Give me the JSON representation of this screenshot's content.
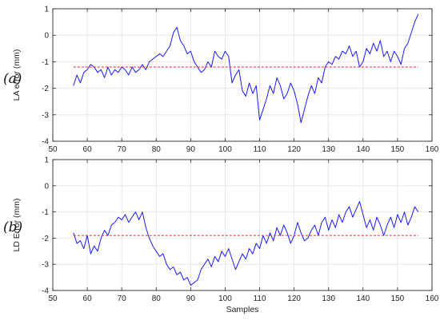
{
  "chart_data": [
    {
      "type": "line",
      "panel_label": "(a)",
      "title": "",
      "xlabel": "",
      "ylabel": "LA error (mm)",
      "xlim": [
        50,
        160
      ],
      "ylim": [
        -4,
        1
      ],
      "xticks": [
        50,
        60,
        70,
        80,
        90,
        100,
        110,
        120,
        130,
        140,
        150,
        160
      ],
      "yticks": [
        1,
        0,
        -1,
        -2,
        -3,
        -4
      ],
      "grid": true,
      "series": [
        {
          "color": "#1a1aff",
          "style": "solid",
          "x": [
            56,
            57,
            58,
            59,
            60,
            61,
            62,
            63,
            64,
            65,
            66,
            67,
            68,
            69,
            70,
            71,
            72,
            73,
            74,
            75,
            76,
            77,
            78,
            79,
            80,
            81,
            82,
            83,
            84,
            85,
            86,
            87,
            88,
            89,
            90,
            91,
            92,
            93,
            94,
            95,
            96,
            97,
            98,
            99,
            100,
            101,
            102,
            103,
            104,
            105,
            106,
            107,
            108,
            109,
            110,
            111,
            112,
            113,
            114,
            115,
            116,
            117,
            118,
            119,
            120,
            121,
            122,
            123,
            124,
            125,
            126,
            127,
            128,
            129,
            130,
            131,
            132,
            133,
            134,
            135,
            136,
            137,
            138,
            139,
            140,
            141,
            142,
            143,
            144,
            145,
            146,
            147,
            148,
            149,
            150,
            151,
            152,
            153,
            154,
            155,
            156
          ],
          "y": [
            -1.9,
            -1.5,
            -1.8,
            -1.4,
            -1.3,
            -1.1,
            -1.2,
            -1.4,
            -1.3,
            -1.6,
            -1.2,
            -1.5,
            -1.3,
            -1.4,
            -1.2,
            -1.3,
            -1.5,
            -1.2,
            -1.4,
            -1.3,
            -1.1,
            -1.3,
            -1.0,
            -0.9,
            -0.8,
            -0.7,
            -0.8,
            -0.6,
            -0.4,
            0.1,
            0.3,
            -0.2,
            -0.4,
            -0.7,
            -0.6,
            -1.0,
            -1.2,
            -1.4,
            -1.3,
            -1.0,
            -1.2,
            -0.6,
            -0.8,
            -0.9,
            -0.6,
            -0.8,
            -1.8,
            -1.5,
            -1.3,
            -2.1,
            -2.3,
            -1.8,
            -2.2,
            -1.9,
            -3.2,
            -2.8,
            -2.4,
            -1.9,
            -2.2,
            -1.6,
            -1.9,
            -2.4,
            -2.2,
            -1.8,
            -2.1,
            -2.6,
            -3.3,
            -2.8,
            -2.3,
            -1.9,
            -2.2,
            -1.6,
            -1.8,
            -1.2,
            -1.0,
            -1.1,
            -0.8,
            -0.9,
            -0.6,
            -0.7,
            -0.4,
            -0.8,
            -0.6,
            -1.2,
            -1.0,
            -0.5,
            -0.7,
            -0.3,
            -0.6,
            -0.2,
            -0.8,
            -0.6,
            -1.0,
            -0.6,
            -0.8,
            -1.1,
            -0.5,
            -0.3,
            0.1,
            0.5,
            0.8
          ]
        },
        {
          "color": "#ff2222",
          "style": "dashed",
          "x": [
            56,
            156
          ],
          "y": [
            -1.2,
            -1.2
          ]
        }
      ]
    },
    {
      "type": "line",
      "panel_label": "(b)",
      "title": "",
      "xlabel": "Samples",
      "ylabel": "LD Error (mm)",
      "xlim": [
        50,
        160
      ],
      "ylim": [
        -4,
        1
      ],
      "xticks": [
        50,
        60,
        70,
        80,
        90,
        100,
        110,
        120,
        130,
        140,
        150,
        160
      ],
      "yticks": [
        1,
        0,
        -1,
        -2,
        -3,
        -4
      ],
      "grid": true,
      "series": [
        {
          "color": "#1a1aff",
          "style": "solid",
          "x": [
            56,
            57,
            58,
            59,
            60,
            61,
            62,
            63,
            64,
            65,
            66,
            67,
            68,
            69,
            70,
            71,
            72,
            73,
            74,
            75,
            76,
            77,
            78,
            79,
            80,
            81,
            82,
            83,
            84,
            85,
            86,
            87,
            88,
            89,
            90,
            91,
            92,
            93,
            94,
            95,
            96,
            97,
            98,
            99,
            100,
            101,
            102,
            103,
            104,
            105,
            106,
            107,
            108,
            109,
            110,
            111,
            112,
            113,
            114,
            115,
            116,
            117,
            118,
            119,
            120,
            121,
            122,
            123,
            124,
            125,
            126,
            127,
            128,
            129,
            130,
            131,
            132,
            133,
            134,
            135,
            136,
            137,
            138,
            139,
            140,
            141,
            142,
            143,
            144,
            145,
            146,
            147,
            148,
            149,
            150,
            151,
            152,
            153,
            154,
            155,
            156
          ],
          "y": [
            -1.8,
            -2.2,
            -2.1,
            -2.4,
            -1.9,
            -2.6,
            -2.3,
            -2.5,
            -2.0,
            -1.7,
            -1.9,
            -1.5,
            -1.4,
            -1.2,
            -1.3,
            -1.1,
            -1.4,
            -1.2,
            -1.0,
            -1.3,
            -1.0,
            -1.6,
            -2.0,
            -2.3,
            -2.5,
            -2.7,
            -2.6,
            -3.0,
            -3.2,
            -3.1,
            -3.4,
            -3.3,
            -3.6,
            -3.5,
            -3.8,
            -3.7,
            -3.6,
            -3.2,
            -3.0,
            -2.8,
            -3.1,
            -2.7,
            -2.9,
            -2.5,
            -2.7,
            -2.4,
            -2.8,
            -3.2,
            -2.9,
            -2.6,
            -2.8,
            -2.4,
            -2.6,
            -2.2,
            -2.4,
            -1.9,
            -2.2,
            -1.8,
            -2.1,
            -1.6,
            -1.9,
            -1.5,
            -1.8,
            -2.2,
            -1.9,
            -1.4,
            -1.8,
            -2.1,
            -2.0,
            -1.7,
            -1.5,
            -1.9,
            -1.4,
            -1.2,
            -1.7,
            -1.3,
            -1.6,
            -1.1,
            -1.4,
            -1.0,
            -0.8,
            -1.2,
            -0.9,
            -0.6,
            -1.1,
            -1.6,
            -1.3,
            -1.7,
            -1.2,
            -1.5,
            -1.9,
            -1.5,
            -1.2,
            -1.6,
            -1.1,
            -1.4,
            -1.0,
            -1.5,
            -1.2,
            -0.8,
            -1.0
          ]
        },
        {
          "color": "#ff2222",
          "style": "dashed",
          "x": [
            56,
            156
          ],
          "y": [
            -1.9,
            -1.9
          ]
        }
      ]
    }
  ]
}
